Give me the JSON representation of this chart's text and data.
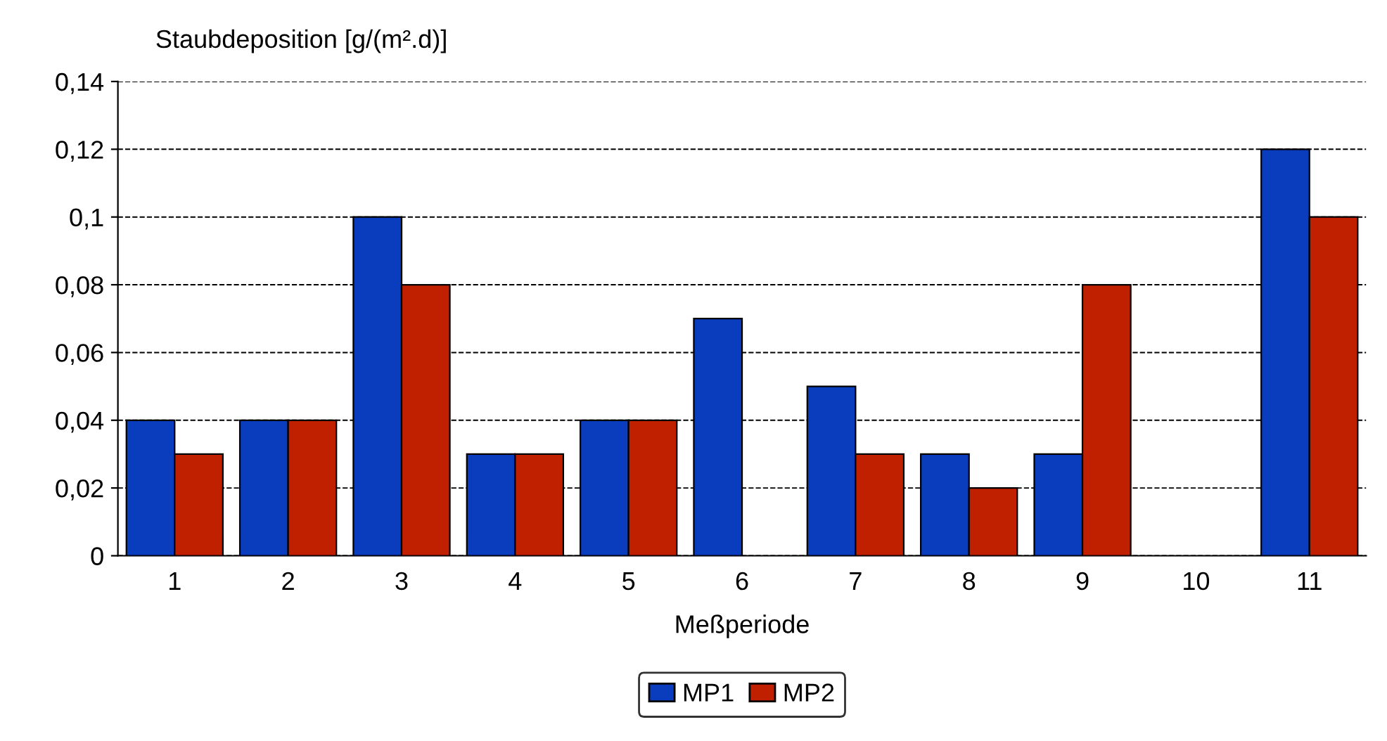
{
  "chart_data": {
    "type": "bar",
    "ylabel": "Staubdeposition [g/(m².d)]",
    "xlabel": "Meßperiode",
    "categories": [
      "1",
      "2",
      "3",
      "4",
      "5",
      "6",
      "7",
      "8",
      "9",
      "10",
      "11"
    ],
    "series": [
      {
        "name": "MP1",
        "color": "#0a3cbe",
        "values": [
          0.04,
          0.04,
          0.1,
          0.03,
          0.04,
          0.07,
          0.05,
          0.03,
          0.03,
          null,
          0.12
        ]
      },
      {
        "name": "MP2",
        "color": "#c02000",
        "values": [
          0.03,
          0.04,
          0.08,
          0.03,
          0.04,
          null,
          0.03,
          0.02,
          0.08,
          null,
          0.1
        ]
      }
    ],
    "ylim": [
      0,
      0.14
    ],
    "yticks": [
      0,
      {
        "value": 0.02,
        "label": "0,02"
      },
      {
        "value": 0.04,
        "label": "0,04"
      },
      {
        "value": 0.06,
        "label": "0,06"
      },
      {
        "value": 0.08,
        "label": "0,08"
      },
      {
        "value": 0.1,
        "label": "0,1"
      },
      {
        "value": 0.12,
        "label": "0,12"
      },
      {
        "value": 0.14,
        "label": "0,14"
      }
    ],
    "grid": "y",
    "line_style": "dashed",
    "legend": "bottom"
  }
}
